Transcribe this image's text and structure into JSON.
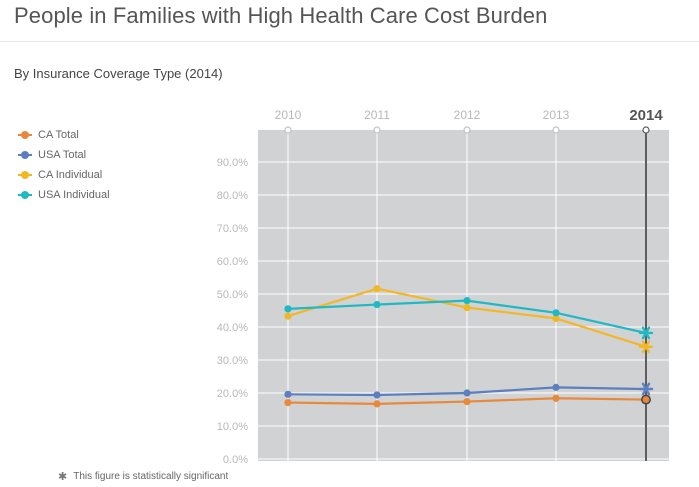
{
  "page": {
    "title": "People in Families with High Health Care Cost Burden",
    "subtitle": "By Insurance Coverage Type (2014)",
    "footnote": "This figure is statistically significant"
  },
  "chart_data": {
    "type": "line",
    "title": "People in Families with High Health Care Cost Burden",
    "subtitle": "By Insurance Coverage Type (2014)",
    "x": [
      "2010",
      "2011",
      "2012",
      "2013",
      "2014"
    ],
    "selected_x": "2014",
    "ylim": [
      0,
      95
    ],
    "y_ticks": [
      "0.0%",
      "10.0%",
      "20.0%",
      "30.0%",
      "40.0%",
      "50.0%",
      "60.0%",
      "70.0%",
      "80.0%",
      "90.0%"
    ],
    "y_tick_values": [
      0,
      10,
      20,
      30,
      40,
      50,
      60,
      70,
      80,
      90
    ],
    "grid": true,
    "legend_position": "left",
    "series": [
      {
        "name": "CA Total",
        "color": "#e8883a",
        "values": [
          17.1,
          16.7,
          17.4,
          18.4,
          18.0
        ],
        "significant": [
          false,
          false,
          false,
          false,
          false
        ]
      },
      {
        "name": "USA Total",
        "color": "#5b7fbf",
        "values": [
          19.6,
          19.4,
          20.0,
          21.7,
          21.2
        ],
        "significant": [
          false,
          false,
          false,
          false,
          true
        ]
      },
      {
        "name": "CA Individual",
        "color": "#f2b724",
        "values": [
          43.3,
          51.6,
          45.9,
          42.6,
          34.0
        ],
        "significant": [
          false,
          false,
          false,
          false,
          true
        ]
      },
      {
        "name": "USA Individual",
        "color": "#1fb9c4",
        "values": [
          45.5,
          46.8,
          48.0,
          44.3,
          38.2
        ],
        "significant": [
          false,
          false,
          false,
          false,
          true
        ]
      }
    ]
  }
}
